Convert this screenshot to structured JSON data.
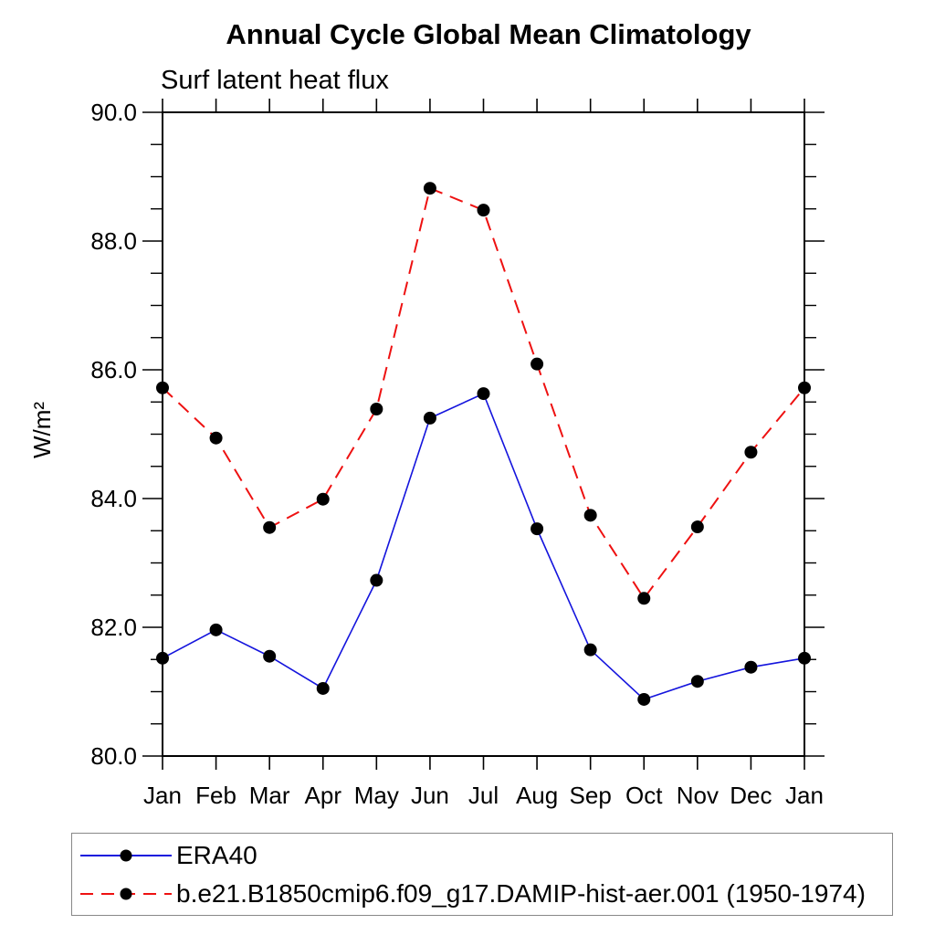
{
  "chart_data": {
    "type": "line",
    "title": "Annual Cycle Global Mean Climatology",
    "subtitle": "Surf latent heat flux",
    "ylabel": "W/m²",
    "xlabel": "",
    "x_categories": [
      "Jan",
      "Feb",
      "Mar",
      "Apr",
      "May",
      "Jun",
      "Jul",
      "Aug",
      "Sep",
      "Oct",
      "Nov",
      "Dec",
      "Jan"
    ],
    "ylim": [
      80.0,
      90.0
    ],
    "ytick_labels": [
      "80.0",
      "82.0",
      "84.0",
      "86.0",
      "88.0",
      "90.0"
    ],
    "ytick_minor_step": 0.5,
    "grid": false,
    "legend_position": "bottom-left-box",
    "axis_color": "#000000",
    "legend_border_color": "#888888",
    "marker": {
      "shape": "filled-circle",
      "color": "#000000",
      "radius": 7
    },
    "series": [
      {
        "name": "ERA40",
        "color": "#1414dd",
        "line_style": "solid",
        "values": [
          81.52,
          81.96,
          81.55,
          81.05,
          82.73,
          85.25,
          85.63,
          83.53,
          81.65,
          80.88,
          81.16,
          81.38,
          81.52
        ]
      },
      {
        "name": "b.e21.B1850cmip6.f09_g17.DAMIP-hist-aer.001 (1950-1974)",
        "color": "#ee1111",
        "line_style": "dashed",
        "values": [
          85.72,
          84.94,
          83.55,
          83.99,
          85.39,
          88.82,
          88.48,
          86.09,
          83.74,
          82.45,
          83.56,
          84.72,
          85.72
        ]
      }
    ]
  }
}
